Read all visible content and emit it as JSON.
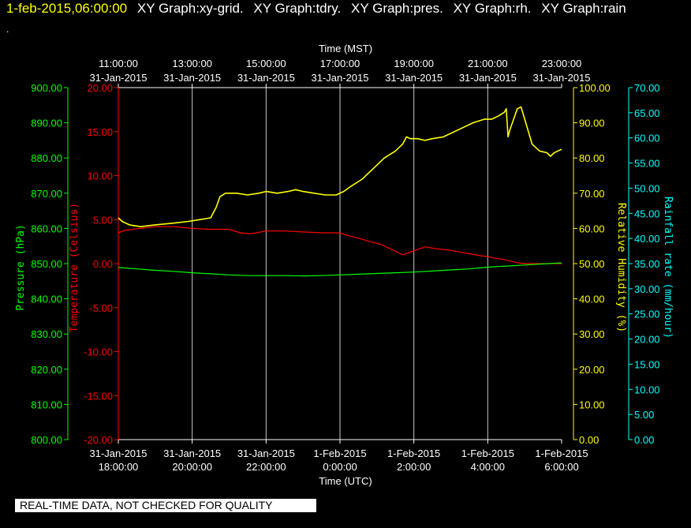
{
  "header": {
    "timestamp": "1-feb-2015,06:00:00",
    "graphs": [
      "XY Graph:xy-grid.",
      "XY Graph:tdry.",
      "XY Graph:pres.",
      "XY Graph:rh.",
      "XY Graph:rain"
    ],
    "stray": "."
  },
  "notice": "REAL-TIME DATA, NOT CHECKED FOR QUALITY",
  "colors": {
    "background": "#000000",
    "grid": "#c8c8c8",
    "pressure": "#00ff00",
    "temperature": "#ff0000",
    "humidity": "#ffff00",
    "rainfall": "#00ffff",
    "time": "#ffffff"
  },
  "chart_data": {
    "type": "line",
    "x_bottom": {
      "label": "Time (UTC)",
      "ticks": [
        {
          "x": 0,
          "line1": "31-Jan-2015",
          "line2": "18:00:00"
        },
        {
          "x": 2,
          "line1": "31-Jan-2015",
          "line2": "20:00:00"
        },
        {
          "x": 4,
          "line1": "31-Jan-2015",
          "line2": "22:00:00"
        },
        {
          "x": 6,
          "line1": "1-Feb-2015",
          "line2": "0:00:00"
        },
        {
          "x": 8,
          "line1": "1-Feb-2015",
          "line2": "2:00:00"
        },
        {
          "x": 10,
          "line1": "1-Feb-2015",
          "line2": "4:00:00"
        },
        {
          "x": 12,
          "line1": "1-Feb-2015",
          "line2": "6:00:00"
        }
      ]
    },
    "x_top": {
      "label": "Time (MST)",
      "ticks": [
        {
          "x": 0,
          "line1": "11:00:00",
          "line2": "31-Jan-2015"
        },
        {
          "x": 2,
          "line1": "13:00:00",
          "line2": "31-Jan-2015"
        },
        {
          "x": 4,
          "line1": "15:00:00",
          "line2": "31-Jan-2015"
        },
        {
          "x": 6,
          "line1": "17:00:00",
          "line2": "31-Jan-2015"
        },
        {
          "x": 8,
          "line1": "19:00:00",
          "line2": "31-Jan-2015"
        },
        {
          "x": 10,
          "line1": "21:00:00",
          "line2": "31-Jan-2015"
        },
        {
          "x": 12,
          "line1": "23:00:00",
          "line2": "31-Jan-2015"
        }
      ]
    },
    "xlim": [
      0,
      12
    ],
    "axes": {
      "pressure": {
        "label": "Pressure (hPa)",
        "ylim": [
          800,
          900
        ],
        "ticks": [
          "800.00",
          "810.00",
          "820.00",
          "830.00",
          "840.00",
          "850.00",
          "860.00",
          "870.00",
          "880.00",
          "890.00",
          "900.00"
        ]
      },
      "temperature": {
        "label": "Temperature (Celsius)",
        "ylim": [
          -20,
          20
        ],
        "ticks": [
          "-20.00",
          "-15.00",
          "-10.00",
          "-5.00",
          "0.00",
          "5.00",
          "10.00",
          "15.00",
          "20.00"
        ]
      },
      "humidity": {
        "label": "Relative Humidity (%)",
        "ylim": [
          0,
          100
        ],
        "ticks": [
          "0.00",
          "10.00",
          "20.00",
          "30.00",
          "40.00",
          "50.00",
          "60.00",
          "70.00",
          "80.00",
          "90.00",
          "100.00"
        ]
      },
      "rainfall": {
        "label": "Rainfall rate (mm/hour)",
        "ylim": [
          0,
          70
        ],
        "ticks": [
          "0.00",
          "5.00",
          "10.00",
          "15.00",
          "20.00",
          "25.00",
          "30.00",
          "35.00",
          "40.00",
          "45.00",
          "50.00",
          "55.00",
          "60.00",
          "65.00",
          "70.00"
        ]
      }
    },
    "series": [
      {
        "key": "humidity",
        "x": [
          0,
          0.1,
          0.3,
          0.6,
          1.0,
          1.5,
          1.9,
          2.2,
          2.5,
          2.65,
          2.75,
          2.9,
          3.2,
          3.5,
          3.8,
          4.0,
          4.3,
          4.6,
          4.8,
          5.0,
          5.3,
          5.6,
          5.9,
          6.1,
          6.3,
          6.6,
          6.9,
          7.2,
          7.5,
          7.7,
          7.8,
          7.9,
          8.1,
          8.3,
          8.5,
          8.8,
          9.0,
          9.3,
          9.6,
          9.9,
          10.1,
          10.3,
          10.45,
          10.5,
          10.55,
          10.6,
          10.7,
          10.8,
          10.9,
          11.0,
          11.2,
          11.4,
          11.6,
          11.7,
          11.8,
          11.9,
          12.0
        ],
        "values": [
          63,
          62,
          61,
          60.5,
          61,
          61.5,
          62,
          62.5,
          63,
          66,
          69,
          70,
          70,
          69.5,
          70,
          70.5,
          70,
          70.5,
          71,
          70.5,
          70,
          69.5,
          69.5,
          70.5,
          72,
          74,
          77,
          80,
          82,
          84,
          86,
          85.5,
          85.5,
          85,
          85.5,
          86,
          87,
          88.5,
          90,
          91,
          91,
          92,
          93,
          94,
          86,
          88,
          91,
          94,
          94.5,
          91,
          84,
          82,
          81.5,
          80.5,
          81.5,
          82,
          82.5
        ]
      },
      {
        "key": "temperature",
        "x": [
          0,
          0.2,
          0.6,
          1.0,
          1.5,
          2.0,
          2.5,
          3.0,
          3.3,
          3.6,
          4.0,
          4.5,
          5.0,
          5.5,
          6.0,
          6.2,
          6.5,
          6.8,
          7.1,
          7.3,
          7.5,
          7.7,
          7.9,
          8.1,
          8.3,
          8.6,
          9.0,
          9.4,
          9.8,
          10.0,
          10.2,
          10.4,
          10.6,
          10.8,
          11.0,
          11.3,
          11.6,
          11.8,
          12.0
        ],
        "values": [
          3.5,
          3.8,
          4.0,
          4.2,
          4.2,
          4.0,
          3.9,
          3.9,
          3.5,
          3.4,
          3.7,
          3.7,
          3.6,
          3.5,
          3.5,
          3.2,
          2.9,
          2.5,
          2.2,
          1.8,
          1.4,
          1.0,
          1.3,
          1.6,
          1.9,
          1.7,
          1.5,
          1.2,
          0.9,
          0.8,
          0.6,
          0.5,
          0.3,
          0.1,
          0.0,
          0.0,
          0.0,
          0.0,
          0.0
        ]
      },
      {
        "key": "pressure",
        "x": [
          0,
          0.5,
          1.0,
          1.5,
          2.0,
          2.5,
          3.0,
          3.5,
          4.0,
          4.5,
          5.0,
          5.5,
          6.0,
          6.5,
          7.0,
          7.5,
          8.0,
          8.5,
          9.0,
          9.5,
          10.0,
          10.5,
          11.0,
          11.5,
          12.0
        ],
        "values": [
          848.9,
          848.5,
          848.1,
          847.8,
          847.4,
          847.1,
          846.8,
          846.6,
          846.6,
          846.6,
          846.5,
          846.6,
          846.8,
          847.0,
          847.2,
          847.4,
          847.6,
          847.9,
          848.2,
          848.5,
          849.0,
          849.3,
          849.6,
          849.9,
          850.2
        ]
      }
    ]
  }
}
